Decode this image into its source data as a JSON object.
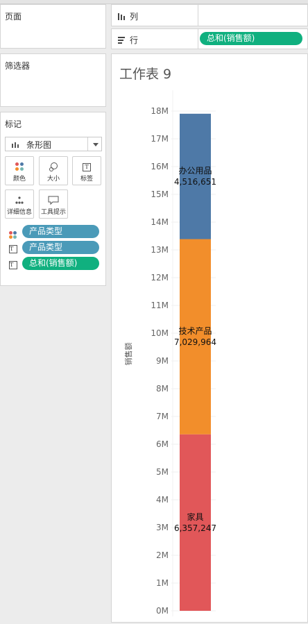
{
  "sidebar": {
    "pages_title": "页面",
    "filters_title": "筛选器",
    "marks_title": "标记",
    "mark_type": "条形图",
    "mark_buttons": {
      "color": "颜色",
      "size": "大小",
      "label": "标签",
      "detail": "详细信息",
      "tooltip": "工具提示"
    },
    "mark_fields": [
      {
        "role": "color",
        "field": "产品类型"
      },
      {
        "role": "label",
        "field": "产品类型"
      },
      {
        "role": "label",
        "field": "总和(销售额)"
      }
    ]
  },
  "shelves": {
    "columns_label": "列",
    "rows_label": "行",
    "rows_pill": "总和(销售额)"
  },
  "sheet": {
    "title": "工作表 9"
  },
  "chart_data": {
    "type": "bar",
    "stacked": true,
    "title": "",
    "xlabel": "",
    "ylabel": "销售额",
    "ylim": [
      0,
      18000000
    ],
    "ytick_labels": [
      "0M",
      "1M",
      "2M",
      "3M",
      "4M",
      "5M",
      "6M",
      "7M",
      "8M",
      "9M",
      "10M",
      "11M",
      "12M",
      "13M",
      "14M",
      "15M",
      "16M",
      "17M",
      "18M"
    ],
    "series": [
      {
        "name": "家具",
        "value": 6357247,
        "value_label": "6,357,247",
        "color": "#e15759"
      },
      {
        "name": "技术产品",
        "value": 7029964,
        "value_label": "7,029,964",
        "color": "#f28e2b"
      },
      {
        "name": "办公用品",
        "value": 4516651,
        "value_label": "4,516,651",
        "color": "#4e79a7"
      }
    ]
  }
}
